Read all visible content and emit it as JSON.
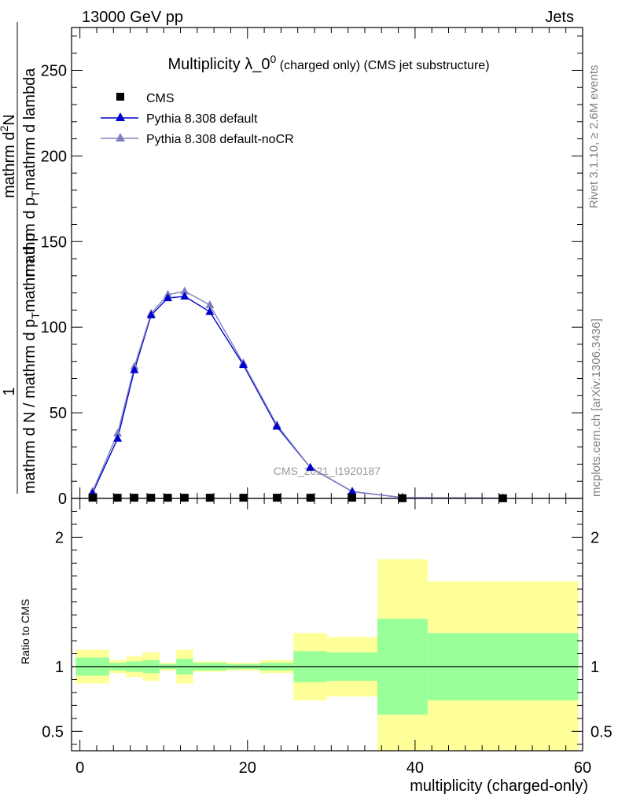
{
  "header": {
    "left": "13000 GeV pp",
    "right": "Jets"
  },
  "side_labels": {
    "rivet": "Rivet 3.1.10, ≥ 2.6M events",
    "mcplots": "mcplots.cern.ch [arXiv:1306.3436]"
  },
  "watermark": "CMS_2021_I1920187",
  "chart_data": [
    {
      "type": "line",
      "title_main": "Multiplicity λ_0",
      "title_sup": "0",
      "title_suffix": " (charged only) (CMS jet substructure)",
      "ylabel_parts": {
        "numerator_one": "1",
        "denominator": "mathrm d N / mathrm d p",
        "denominator_2": "mathrm d p",
        "right_numer": "mathrm d",
        "right_numer_sup": "2",
        "right_numer_end": "N",
        "right_denom": "mathrm d p",
        "right_denom_end": "mathrm d lambda",
        "sub_t": "T"
      },
      "xlim": [
        -1,
        60
      ],
      "ylim": [
        0,
        275
      ],
      "yticks": [
        0,
        50,
        100,
        150,
        200,
        250
      ],
      "grid": false,
      "legend_placement": "top-left",
      "series": [
        {
          "name": "CMS",
          "color": "#000000",
          "marker": "square",
          "x": [
            1.5,
            4.5,
            6.5,
            8.5,
            10.5,
            12.5,
            15.5,
            19.5,
            23.5,
            27.5,
            32.5,
            38.5,
            50.5
          ],
          "y": [
            0.4,
            0.4,
            0.4,
            0.4,
            0.4,
            0.4,
            0.4,
            0.4,
            0.4,
            0.4,
            0.4,
            0.1,
            0.1
          ]
        },
        {
          "name": "Pythia 8.308 default",
          "color": "#0000cc",
          "marker": "triangle",
          "x": [
            1.5,
            4.5,
            6.5,
            8.5,
            10.5,
            12.5,
            15.5,
            19.5,
            23.5,
            27.5,
            32.5,
            38.5,
            50.5
          ],
          "y": [
            3,
            35,
            75,
            107,
            117,
            118,
            109,
            78,
            42,
            18,
            4,
            0.5,
            0.1
          ]
        },
        {
          "name": "Pythia 8.308 default-noCR",
          "color": "#8080c0",
          "marker": "triangle",
          "x": [
            1.5,
            4.5,
            6.5,
            8.5,
            10.5,
            12.5,
            15.5,
            19.5,
            23.5,
            27.5,
            32.5,
            38.5,
            50.5
          ],
          "y": [
            4,
            38,
            77,
            108,
            119,
            121,
            113,
            79,
            43,
            18,
            4,
            0.5,
            0.1
          ]
        }
      ]
    },
    {
      "type": "area",
      "ylabel": "Ratio to CMS",
      "xlabel": "multiplicity (charged-only)",
      "xlim": [
        -1,
        60
      ],
      "ylim": [
        0.35,
        2.3
      ],
      "xticks": [
        0,
        20,
        40,
        60
      ],
      "yticks": [
        0.5,
        1,
        2
      ],
      "reference_line": 1,
      "bands": {
        "edges": [
          -0.5,
          3.5,
          5.5,
          7.5,
          9.5,
          11.5,
          13.5,
          17.5,
          21.5,
          25.5,
          29.5,
          35.5,
          41.5,
          59.5
        ],
        "stat_color": "#99ff99",
        "total_color": "#ffff99",
        "stat_lo": [
          0.93,
          0.97,
          0.96,
          0.95,
          0.98,
          0.94,
          0.97,
          0.98,
          0.97,
          0.88,
          0.89,
          0.63,
          0.74
        ],
        "stat_hi": [
          1.07,
          1.03,
          1.04,
          1.05,
          1.02,
          1.06,
          1.03,
          1.02,
          1.03,
          1.12,
          1.11,
          1.37,
          1.26
        ],
        "total_lo": [
          0.87,
          0.95,
          0.92,
          0.89,
          0.97,
          0.87,
          0.96,
          0.97,
          0.95,
          0.74,
          0.77,
          0.3,
          0.3
        ],
        "total_hi": [
          1.13,
          1.05,
          1.08,
          1.11,
          1.03,
          1.13,
          1.04,
          1.03,
          1.05,
          1.26,
          1.23,
          1.83,
          1.66
        ]
      }
    }
  ]
}
